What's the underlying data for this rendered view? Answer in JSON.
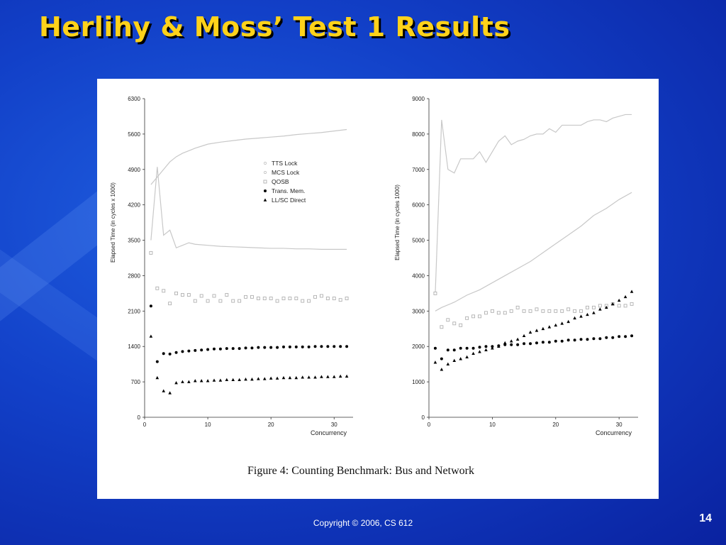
{
  "slide": {
    "title": "Herlihy & Moss’ Test 1 Results",
    "caption": "Figure 4:  Counting Benchmark:  Bus and Network",
    "footer": "Copyright © 2006, CS 612",
    "page_number": "14"
  },
  "chart_data": [
    {
      "type": "scatter",
      "xlabel": "Concurrency",
      "ylabel": "Elapsed Time (in cycles x 1000)",
      "xlim": [
        0,
        33
      ],
      "ylim": [
        0,
        6300
      ],
      "xticks": [
        0,
        10,
        20,
        30
      ],
      "yticks": [
        0,
        700,
        1400,
        2100,
        2800,
        3500,
        4200,
        4900,
        5600,
        6300
      ],
      "legend_position": "center",
      "series": [
        {
          "name": "TTS Lock",
          "marker": "none",
          "color": "#c8c8c8",
          "x": [
            1,
            2,
            3,
            4,
            5,
            6,
            7,
            8,
            9,
            10,
            12,
            14,
            16,
            18,
            20,
            22,
            24,
            26,
            28,
            30,
            32
          ],
          "y": [
            4600,
            4750,
            4900,
            5050,
            5150,
            5220,
            5270,
            5320,
            5360,
            5400,
            5440,
            5470,
            5500,
            5520,
            5540,
            5560,
            5590,
            5610,
            5630,
            5660,
            5690
          ]
        },
        {
          "name": "MCS Lock",
          "marker": "none",
          "color": "#c8c8c8",
          "x": [
            1,
            2,
            3,
            4,
            5,
            6,
            7,
            8,
            10,
            12,
            14,
            16,
            18,
            20,
            22,
            24,
            26,
            28,
            30,
            32
          ],
          "y": [
            3500,
            4950,
            3600,
            3700,
            3350,
            3400,
            3450,
            3420,
            3400,
            3380,
            3370,
            3360,
            3350,
            3340,
            3340,
            3330,
            3330,
            3320,
            3320,
            3320
          ]
        },
        {
          "name": "QOSB",
          "marker": "square",
          "color": "#b0b0b0",
          "x": [
            1,
            2,
            3,
            4,
            5,
            6,
            7,
            8,
            9,
            10,
            11,
            12,
            13,
            14,
            15,
            16,
            17,
            18,
            19,
            20,
            21,
            22,
            23,
            24,
            25,
            26,
            27,
            28,
            29,
            30,
            31,
            32
          ],
          "y": [
            3250,
            2550,
            2500,
            2250,
            2450,
            2420,
            2420,
            2300,
            2400,
            2300,
            2400,
            2300,
            2420,
            2300,
            2300,
            2380,
            2380,
            2350,
            2350,
            2350,
            2300,
            2350,
            2350,
            2350,
            2300,
            2300,
            2380,
            2400,
            2350,
            2350,
            2320,
            2350
          ]
        },
        {
          "name": "Trans. Mem.",
          "marker": "circle",
          "color": "#000000",
          "x": [
            1,
            2,
            3,
            4,
            5,
            6,
            7,
            8,
            9,
            10,
            11,
            12,
            13,
            14,
            15,
            16,
            17,
            18,
            19,
            20,
            21,
            22,
            23,
            24,
            25,
            26,
            27,
            28,
            29,
            30,
            31,
            32
          ],
          "y": [
            2200,
            1100,
            1260,
            1250,
            1280,
            1300,
            1310,
            1320,
            1330,
            1340,
            1350,
            1350,
            1360,
            1360,
            1360,
            1370,
            1370,
            1380,
            1380,
            1380,
            1380,
            1390,
            1390,
            1390,
            1390,
            1390,
            1400,
            1400,
            1400,
            1400,
            1400,
            1400
          ]
        },
        {
          "name": "LL/SC Direct",
          "marker": "triangle",
          "color": "#000000",
          "x": [
            1,
            2,
            3,
            4,
            5,
            6,
            7,
            8,
            9,
            10,
            11,
            12,
            13,
            14,
            15,
            16,
            17,
            18,
            19,
            20,
            21,
            22,
            23,
            24,
            25,
            26,
            27,
            28,
            29,
            30,
            31,
            32
          ],
          "y": [
            1600,
            780,
            520,
            480,
            680,
            700,
            700,
            720,
            720,
            720,
            730,
            730,
            740,
            740,
            740,
            750,
            750,
            760,
            760,
            770,
            770,
            780,
            780,
            780,
            790,
            790,
            790,
            800,
            800,
            800,
            810,
            810
          ]
        }
      ]
    },
    {
      "type": "scatter",
      "xlabel": "Concurrency",
      "ylabel": "Elapsed Time (in cycles  1000)",
      "xlim": [
        0,
        33
      ],
      "ylim": [
        0,
        9000
      ],
      "xticks": [
        0,
        10,
        20,
        30
      ],
      "yticks": [
        0,
        1000,
        2000,
        3000,
        4000,
        5000,
        6000,
        7000,
        8000,
        9000
      ],
      "series": [
        {
          "name": "TTS Lock",
          "marker": "none",
          "color": "#c8c8c8",
          "x": [
            1,
            2,
            3,
            4,
            5,
            6,
            7,
            8,
            9,
            10,
            11,
            12,
            13,
            14,
            15,
            16,
            17,
            18,
            19,
            20,
            21,
            22,
            23,
            24,
            25,
            26,
            27,
            28,
            29,
            30,
            31,
            32
          ],
          "y": [
            3500,
            8400,
            7000,
            6900,
            7300,
            7300,
            7300,
            7500,
            7200,
            7500,
            7800,
            7950,
            7700,
            7800,
            7850,
            7950,
            8000,
            8000,
            8150,
            8050,
            8250,
            8250,
            8250,
            8250,
            8350,
            8400,
            8400,
            8350,
            8450,
            8500,
            8550,
            8550
          ]
        },
        {
          "name": "MCS Lock",
          "marker": "none",
          "color": "#c8c8c8",
          "x": [
            1,
            2,
            4,
            6,
            8,
            10,
            12,
            14,
            16,
            18,
            20,
            22,
            24,
            26,
            28,
            30,
            32
          ],
          "y": [
            3000,
            3100,
            3250,
            3450,
            3600,
            3800,
            4000,
            4200,
            4400,
            4650,
            4900,
            5150,
            5400,
            5700,
            5900,
            6150,
            6350
          ]
        },
        {
          "name": "QOSB",
          "marker": "square",
          "color": "#b0b0b0",
          "x": [
            1,
            2,
            3,
            4,
            5,
            6,
            7,
            8,
            9,
            10,
            11,
            12,
            13,
            14,
            15,
            16,
            17,
            18,
            19,
            20,
            21,
            22,
            23,
            24,
            25,
            26,
            27,
            28,
            29,
            30,
            31,
            32
          ],
          "y": [
            3500,
            2550,
            2750,
            2650,
            2600,
            2800,
            2850,
            2850,
            2950,
            3000,
            2950,
            2950,
            3000,
            3100,
            3000,
            3000,
            3050,
            3000,
            3000,
            3000,
            3000,
            3050,
            3000,
            3000,
            3100,
            3100,
            3150,
            3150,
            3200,
            3150,
            3150,
            3200
          ]
        },
        {
          "name": "Trans. Mem.",
          "marker": "circle",
          "color": "#000000",
          "x": [
            1,
            2,
            3,
            4,
            5,
            6,
            7,
            8,
            9,
            10,
            11,
            12,
            13,
            14,
            15,
            16,
            17,
            18,
            19,
            20,
            21,
            22,
            23,
            24,
            25,
            26,
            27,
            28,
            29,
            30,
            31,
            32
          ],
          "y": [
            1950,
            1650,
            1900,
            1900,
            1950,
            1950,
            1950,
            1980,
            2000,
            2000,
            2020,
            2050,
            2050,
            2050,
            2080,
            2080,
            2100,
            2120,
            2120,
            2150,
            2150,
            2180,
            2180,
            2200,
            2200,
            2220,
            2220,
            2250,
            2250,
            2280,
            2280,
            2300
          ]
        },
        {
          "name": "LL/SC Direct",
          "marker": "triangle",
          "color": "#000000",
          "x": [
            1,
            2,
            3,
            4,
            5,
            6,
            7,
            8,
            9,
            10,
            11,
            12,
            13,
            14,
            15,
            16,
            17,
            18,
            19,
            20,
            21,
            22,
            23,
            24,
            25,
            26,
            27,
            28,
            29,
            30,
            31,
            32
          ],
          "y": [
            1550,
            1350,
            1500,
            1600,
            1650,
            1700,
            1800,
            1850,
            1900,
            1950,
            2000,
            2100,
            2150,
            2200,
            2300,
            2400,
            2450,
            2500,
            2550,
            2600,
            2650,
            2700,
            2800,
            2850,
            2900,
            2950,
            3050,
            3100,
            3200,
            3300,
            3400,
            3550
          ]
        }
      ]
    }
  ]
}
